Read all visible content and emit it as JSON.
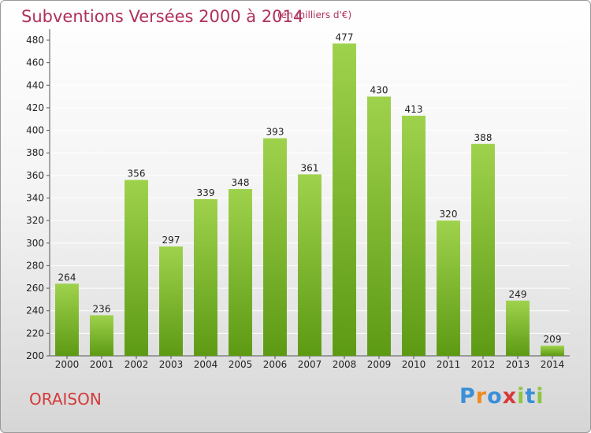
{
  "header": {
    "title": "Subventions Versées 2000 à 2014",
    "subtitle": "(en milliers d'€)"
  },
  "footer": {
    "commune": "ORAISON",
    "logo_letters": [
      "P",
      "r",
      "o",
      "x",
      "i",
      "t",
      "i"
    ],
    "logo_colors": [
      "#3a8fd8",
      "#f08a1c",
      "#3a8fd8",
      "#d83a3a",
      "#8cc63f",
      "#3a8fd8",
      "#8cc63f"
    ]
  },
  "colors": {
    "bar_light": "#9fd24c",
    "bar_dark": "#5d9a14",
    "grid": "#ffffff",
    "axis": "#555555"
  },
  "chart_data": {
    "type": "bar",
    "title": "Subventions Versées 2000 à 2014",
    "subtitle": "(en milliers d'€)",
    "categories": [
      "2000",
      "2001",
      "2002",
      "2003",
      "2004",
      "2005",
      "2006",
      "2007",
      "2008",
      "2009",
      "2010",
      "2011",
      "2012",
      "2013",
      "2014"
    ],
    "values": [
      264,
      236,
      356,
      297,
      339,
      348,
      393,
      361,
      477,
      430,
      413,
      320,
      388,
      249,
      209
    ],
    "ylim": [
      200,
      480
    ],
    "yticks": [
      200,
      220,
      240,
      260,
      280,
      300,
      320,
      340,
      360,
      380,
      400,
      420,
      440,
      460,
      480
    ],
    "grid": true,
    "xlabel": "",
    "ylabel": ""
  }
}
